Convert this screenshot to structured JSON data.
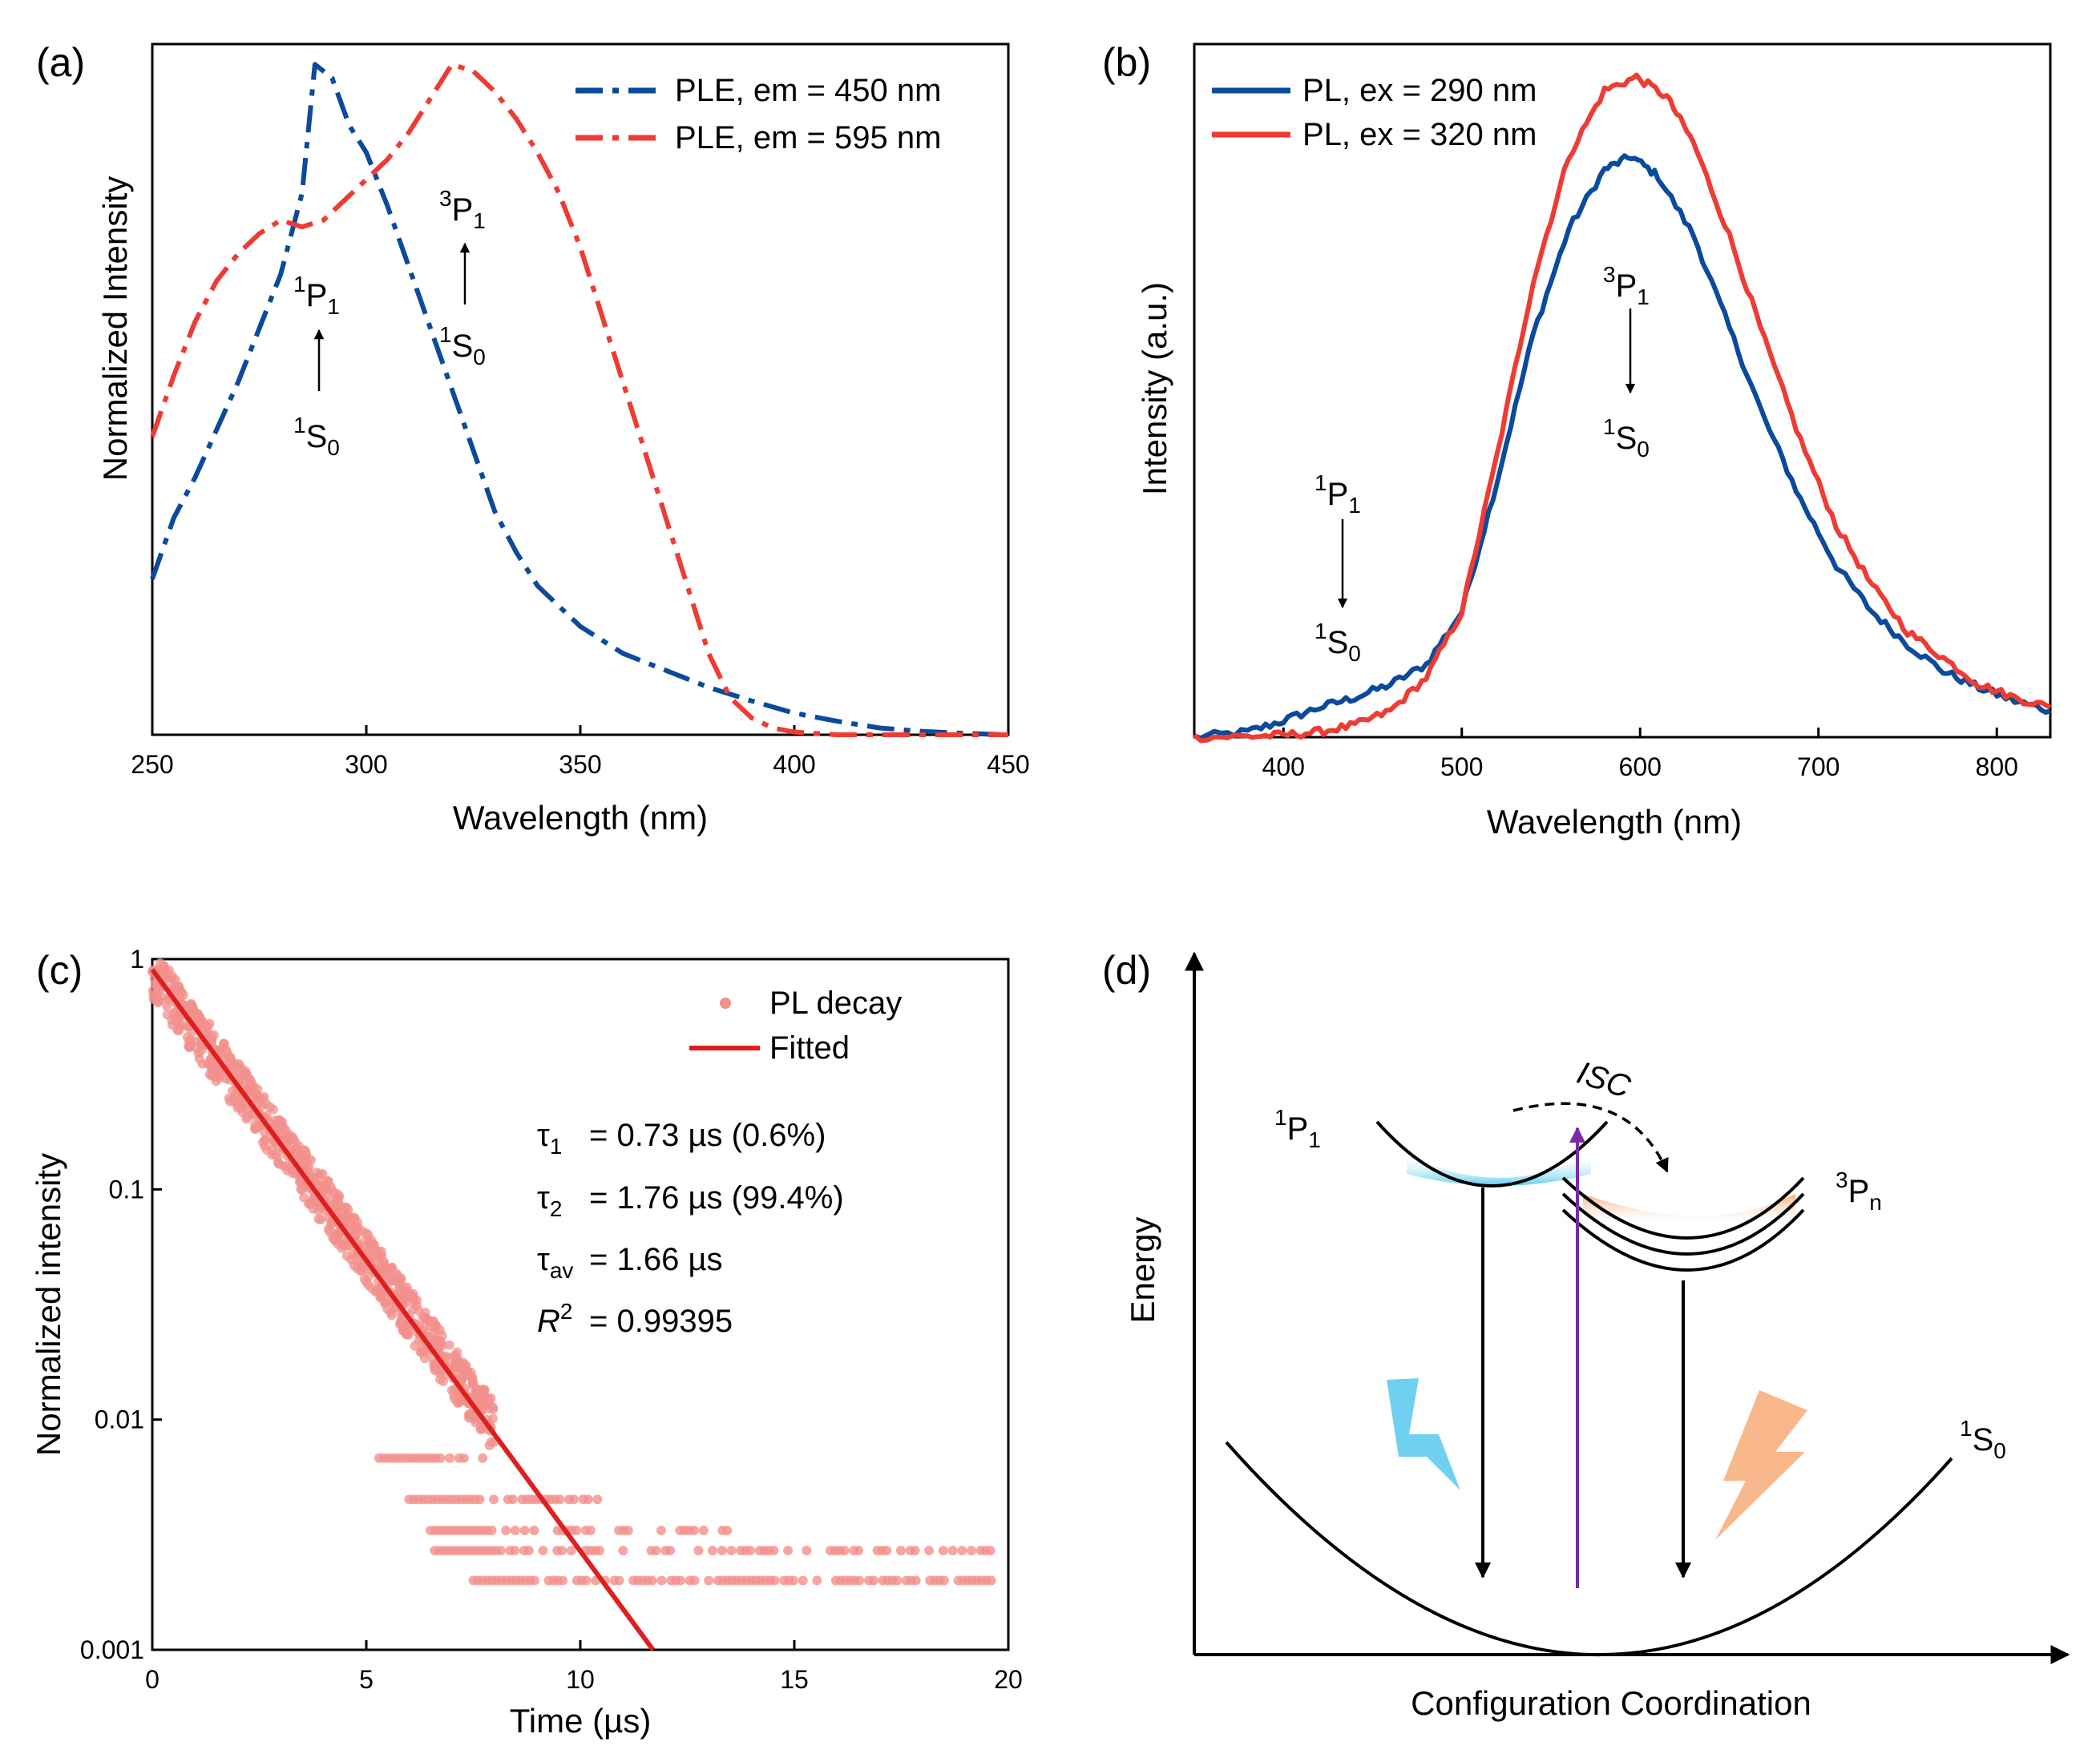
{
  "colors": {
    "blue": "#0b4a9c",
    "red": "#ee3b33",
    "decay_point": "#f2908c",
    "fit": "#dd1f1f",
    "purple": "#7a2aa8",
    "cyan": "#57c8ec",
    "orange": "#f7b07e"
  },
  "panels": {
    "a": {
      "label": "(a)"
    },
    "b": {
      "label": "(b)"
    },
    "c": {
      "label": "(c)"
    },
    "d": {
      "label": "(d)"
    }
  },
  "chart_data": [
    {
      "panel": "a",
      "type": "line",
      "xlabel": "Wavelength (nm)",
      "ylabel": "Normalized Intensity",
      "xlim": [
        250,
        450
      ],
      "ylim": [
        0,
        1.02
      ],
      "xticks": [
        "250",
        "300",
        "350",
        "400",
        "450"
      ],
      "legend_position": "top-right",
      "series": [
        {
          "name": "PLE, em = 450 nm",
          "style": "dash-dot",
          "color": "blue",
          "x": [
            250,
            255,
            260,
            265,
            270,
            275,
            280,
            285,
            288,
            292,
            296,
            300,
            305,
            310,
            315,
            320,
            325,
            330,
            335,
            340,
            345,
            350,
            360,
            370,
            380,
            390,
            400,
            410,
            420,
            430,
            440,
            450
          ],
          "y": [
            0.23,
            0.32,
            0.38,
            0.45,
            0.52,
            0.6,
            0.68,
            0.8,
            0.99,
            0.97,
            0.9,
            0.86,
            0.78,
            0.69,
            0.6,
            0.51,
            0.42,
            0.33,
            0.27,
            0.22,
            0.19,
            0.16,
            0.12,
            0.095,
            0.07,
            0.05,
            0.032,
            0.02,
            0.01,
            0.005,
            0.002,
            0.0
          ]
        },
        {
          "name": "PLE, em = 595 nm",
          "style": "dash-dot",
          "color": "red",
          "x": [
            250,
            255,
            260,
            265,
            270,
            275,
            280,
            285,
            290,
            295,
            300,
            305,
            310,
            315,
            320,
            325,
            330,
            335,
            340,
            345,
            350,
            355,
            360,
            365,
            370,
            375,
            380,
            385,
            390,
            395,
            400,
            410,
            420,
            430,
            450
          ],
          "y": [
            0.44,
            0.53,
            0.61,
            0.67,
            0.71,
            0.74,
            0.76,
            0.75,
            0.76,
            0.79,
            0.82,
            0.85,
            0.89,
            0.94,
            0.99,
            0.98,
            0.95,
            0.91,
            0.86,
            0.8,
            0.72,
            0.62,
            0.52,
            0.42,
            0.32,
            0.22,
            0.12,
            0.055,
            0.025,
            0.01,
            0.004,
            0.0,
            0.0,
            0.0,
            0.0
          ]
        }
      ],
      "annotations": [
        {
          "upper": "1P1",
          "lower": "1S0",
          "x": 288
        },
        {
          "upper": "3P1",
          "lower": "1S0",
          "x": 320
        }
      ]
    },
    {
      "panel": "b",
      "type": "line",
      "xlabel": "Wavelength (nm)",
      "ylabel": "Intensity (a.u.)",
      "xlim": [
        350,
        830
      ],
      "ylim": [
        0,
        1.05
      ],
      "xticks": [
        "400",
        "500",
        "600",
        "700",
        "800"
      ],
      "legend_position": "top-left",
      "series": [
        {
          "name": "PL, ex = 290 nm",
          "style": "solid",
          "color": "blue",
          "x": [
            350,
            380,
            400,
            420,
            440,
            460,
            480,
            500,
            520,
            540,
            560,
            580,
            595,
            610,
            630,
            650,
            670,
            690,
            710,
            730,
            750,
            770,
            790,
            810,
            830
          ],
          "y": [
            0.0,
            0.008,
            0.025,
            0.045,
            0.06,
            0.08,
            0.11,
            0.19,
            0.39,
            0.61,
            0.77,
            0.86,
            0.88,
            0.85,
            0.76,
            0.62,
            0.48,
            0.36,
            0.26,
            0.19,
            0.14,
            0.1,
            0.075,
            0.055,
            0.04
          ]
        },
        {
          "name": "PL, ex = 320 nm",
          "style": "solid",
          "color": "red",
          "x": [
            350,
            380,
            400,
            420,
            440,
            460,
            480,
            500,
            520,
            540,
            560,
            580,
            598,
            615,
            630,
            650,
            670,
            690,
            710,
            730,
            750,
            770,
            790,
            810,
            830
          ],
          "y": [
            0.0,
            0.001,
            0.003,
            0.008,
            0.018,
            0.04,
            0.09,
            0.19,
            0.43,
            0.69,
            0.88,
            0.98,
            1.0,
            0.97,
            0.9,
            0.76,
            0.6,
            0.45,
            0.32,
            0.23,
            0.16,
            0.12,
            0.08,
            0.06,
            0.045
          ]
        }
      ],
      "annotations": [
        {
          "upper": "3P1",
          "lower": "1S0",
          "x": 597
        },
        {
          "upper": "1P1",
          "lower": "1S0",
          "x": 435
        }
      ]
    },
    {
      "panel": "c",
      "type": "scatter",
      "xlabel": "Time (µs)",
      "ylabel": "Normalized intensity",
      "xlim": [
        0,
        20
      ],
      "ylim": [
        0.001,
        1
      ],
      "yscale": "log",
      "xticks": [
        "0",
        "5",
        "10",
        "15",
        "20"
      ],
      "yticks": [
        "1",
        "0.1",
        "0.01",
        "0.001"
      ],
      "legend_position": "top-right",
      "series": [
        {
          "name": "PL decay",
          "kind": "scatter",
          "color": "decay_point",
          "decay_lifetime_us": 1.76,
          "t_range": [
            0,
            19.7
          ],
          "noise_floor_levels": [
            0.0068,
            0.0045,
            0.0033,
            0.0027,
            0.002
          ]
        },
        {
          "name": "Fitted",
          "kind": "line",
          "color": "fit",
          "x": [
            0,
            11.7
          ],
          "y": [
            0.9,
            0.001
          ]
        }
      ],
      "fit_results": {
        "tau1": "= 0.73 µs (0.6%)",
        "tau2": "= 1.76 µs (99.4%)",
        "tauav": "= 1.66 µs",
        "r2": "= 0.99395"
      }
    }
  ],
  "diagram": {
    "ylabel": "Energy",
    "xlabel": "Configuration Coordination",
    "isc_label": "ISC",
    "levels": {
      "p1": {
        "upper": "1P1"
      },
      "pn": {
        "upper": "3Pn"
      },
      "s0": {
        "upper": "1S0"
      }
    }
  }
}
